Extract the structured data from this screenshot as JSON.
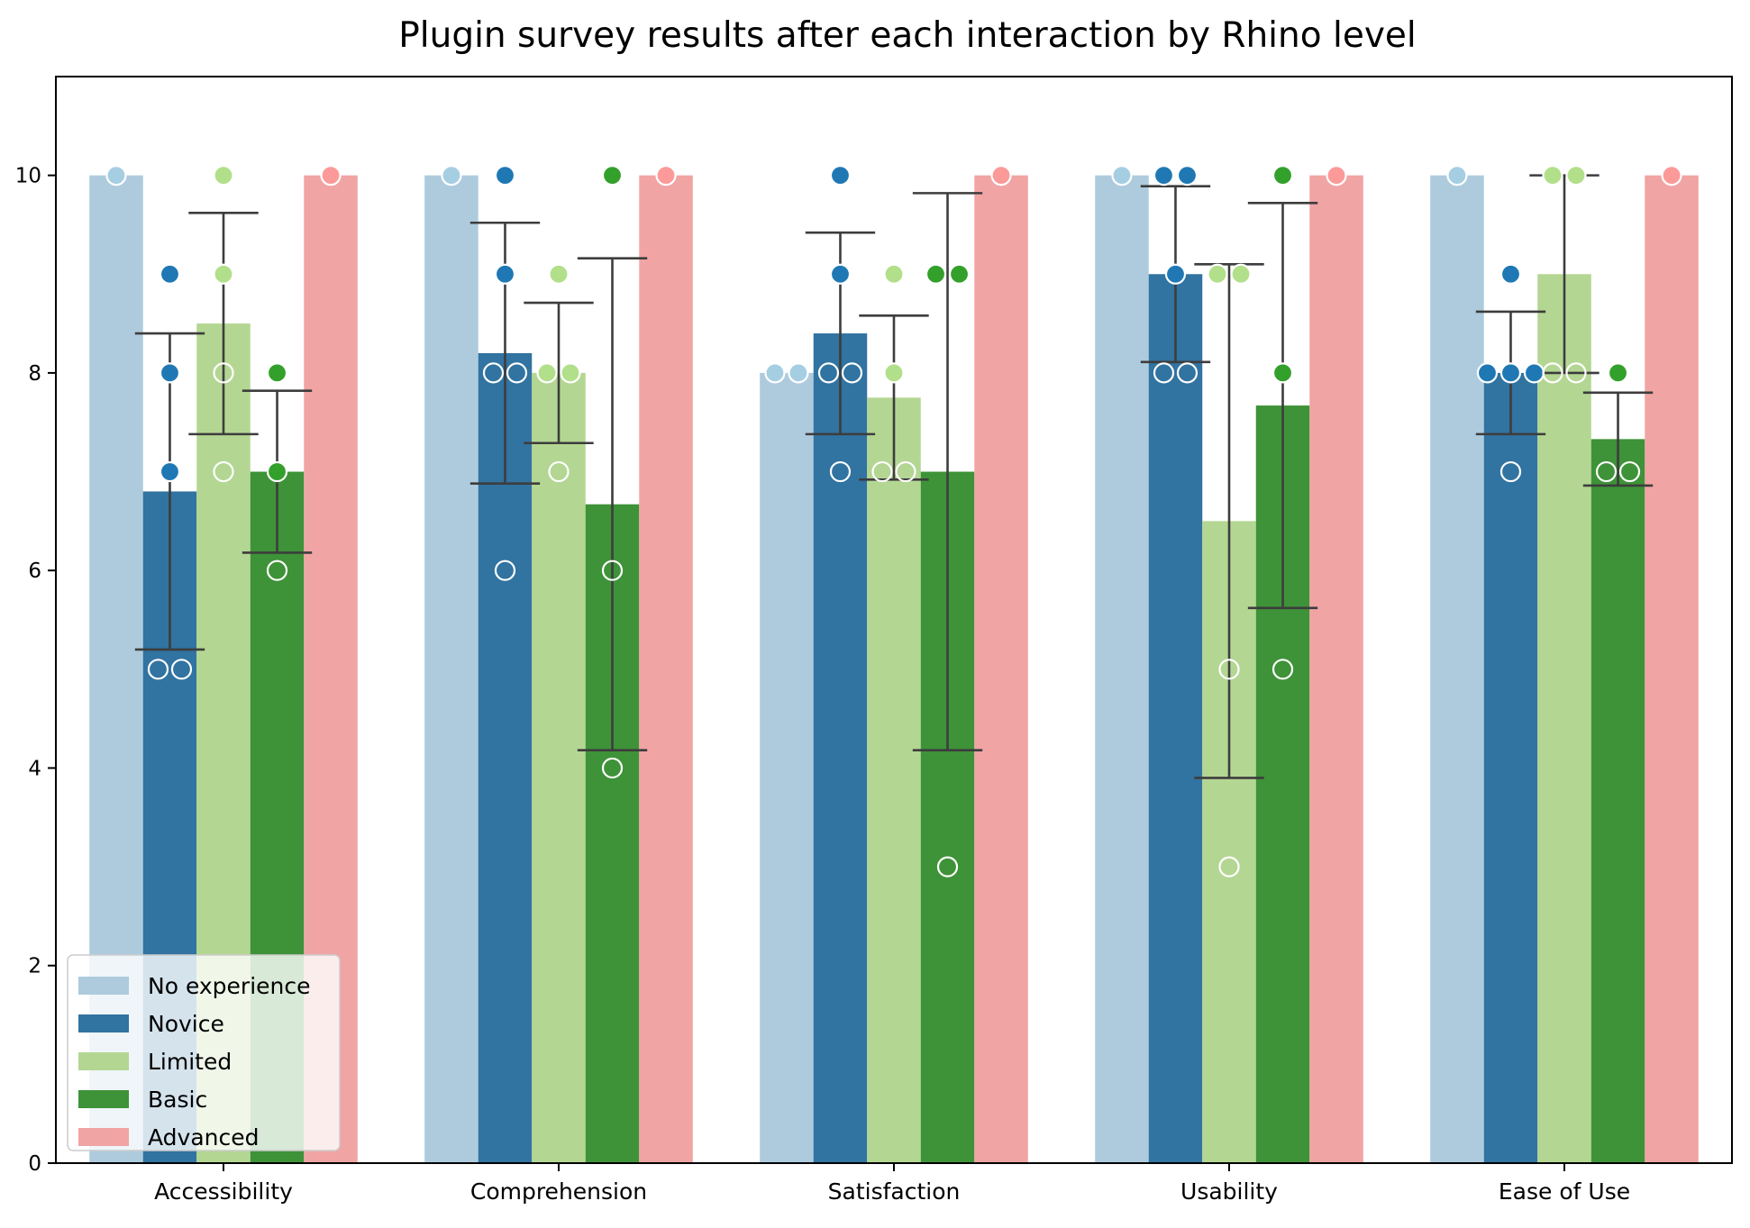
{
  "chart_data": {
    "type": "bar",
    "title": "Plugin survey results after each interaction by Rhino level",
    "xlabel": "",
    "ylabel": "",
    "ylim": [
      0,
      11
    ],
    "yticks": [
      0,
      2,
      4,
      6,
      8,
      10
    ],
    "categories": [
      "Accessibility",
      "Comprehension",
      "Satisfaction",
      "Usability",
      "Ease of Use"
    ],
    "legend_position": "lower-left",
    "grid": false,
    "series": [
      {
        "name": "No experience",
        "color": "#aecbde",
        "point_color": "#a6cee3",
        "values": [
          10,
          10,
          8,
          10,
          10
        ],
        "errors": [
          null,
          null,
          null,
          null,
          null
        ],
        "points": [
          [
            10
          ],
          [
            10
          ],
          [
            8,
            8
          ],
          [
            10
          ],
          [
            10
          ]
        ]
      },
      {
        "name": "Novice",
        "color": "#3173a1",
        "point_color": "#1f78b4",
        "values": [
          6.8,
          8.2,
          8.4,
          9.0,
          8.0
        ],
        "errors": [
          [
            5.2,
            8.4
          ],
          [
            6.88,
            9.52
          ],
          [
            7.38,
            9.42
          ],
          [
            8.11,
            9.89
          ],
          [
            7.38,
            8.62
          ]
        ],
        "points": [
          [
            9,
            8,
            7,
            5,
            5
          ],
          [
            10,
            9,
            8,
            8,
            6
          ],
          [
            10,
            9,
            8,
            8,
            7
          ],
          [
            10,
            10,
            9,
            8,
            8
          ],
          [
            9,
            8,
            8,
            8,
            7
          ]
        ]
      },
      {
        "name": "Limited",
        "color": "#b4d693",
        "point_color": "#b2df8a",
        "values": [
          8.5,
          8.0,
          7.75,
          6.5,
          9.0
        ],
        "errors": [
          [
            7.38,
            9.62
          ],
          [
            7.29,
            8.71
          ],
          [
            6.92,
            8.58
          ],
          [
            3.9,
            9.1
          ],
          [
            8.0,
            10.0
          ]
        ],
        "points": [
          [
            10,
            9,
            8,
            7
          ],
          [
            9,
            8,
            8,
            7
          ],
          [
            9,
            8,
            7,
            7
          ],
          [
            9,
            9,
            5,
            3
          ],
          [
            10,
            10,
            8,
            8
          ]
        ]
      },
      {
        "name": "Basic",
        "color": "#3e9238",
        "point_color": "#33a02c",
        "values": [
          7.0,
          6.67,
          7.0,
          7.67,
          7.33
        ],
        "errors": [
          [
            6.18,
            7.82
          ],
          [
            4.18,
            9.16
          ],
          [
            4.18,
            9.82
          ],
          [
            5.62,
            9.72
          ],
          [
            6.86,
            7.8
          ]
        ],
        "points": [
          [
            8,
            7,
            6
          ],
          [
            10,
            6,
            4
          ],
          [
            9,
            9,
            3
          ],
          [
            10,
            8,
            5
          ],
          [
            8,
            7,
            7
          ]
        ]
      },
      {
        "name": "Advanced",
        "color": "#f0a4a3",
        "point_color": "#fb9a99",
        "values": [
          10,
          10,
          10,
          10,
          10
        ],
        "errors": [
          null,
          null,
          null,
          null,
          null
        ],
        "points": [
          [
            10
          ],
          [
            10
          ],
          [
            10
          ],
          [
            10
          ],
          [
            10
          ]
        ]
      }
    ]
  }
}
